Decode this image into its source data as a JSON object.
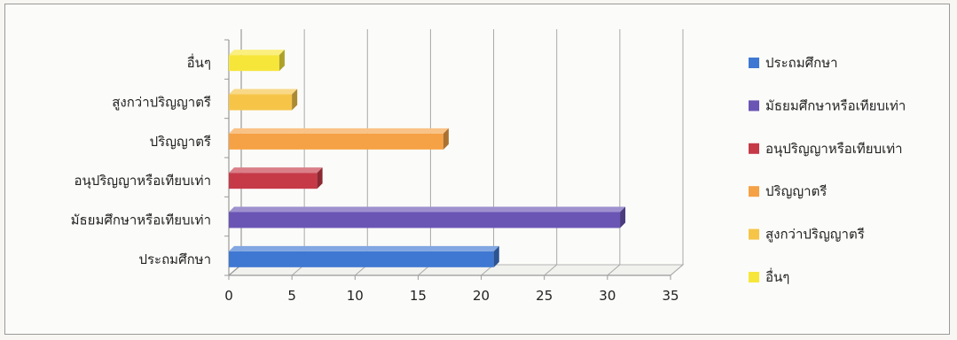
{
  "chart_data": {
    "type": "bar",
    "orientation": "horizontal",
    "style": "3d",
    "categories": [
      "ประถมศึกษา",
      "มัธยมศึกษาหรือเทียบเท่า",
      "อนุปริญญาหรือเทียบเท่า",
      "ปริญญาตรี",
      "สูงกว่าปริญญาตรี",
      "อื่นๆ"
    ],
    "values": [
      21,
      31,
      7,
      17,
      5,
      4
    ],
    "colors": [
      "#3f78d2",
      "#6a55b4",
      "#c63a48",
      "#f5a145",
      "#f6c548",
      "#f7e63a"
    ],
    "x_ticks": [
      "0",
      "5",
      "10",
      "15",
      "20",
      "25",
      "30",
      "35"
    ],
    "xlim": [
      0,
      35
    ],
    "grid": true,
    "legend_position": "right",
    "legend": [
      "ประถมศึกษา",
      "มัธยมศึกษาหรือเทียบเท่า",
      "อนุปริญญาหรือเทียบเท่า",
      "ปริญญาตรี",
      "สูงกว่าปริญญาตรี",
      "อื่นๆ"
    ]
  }
}
